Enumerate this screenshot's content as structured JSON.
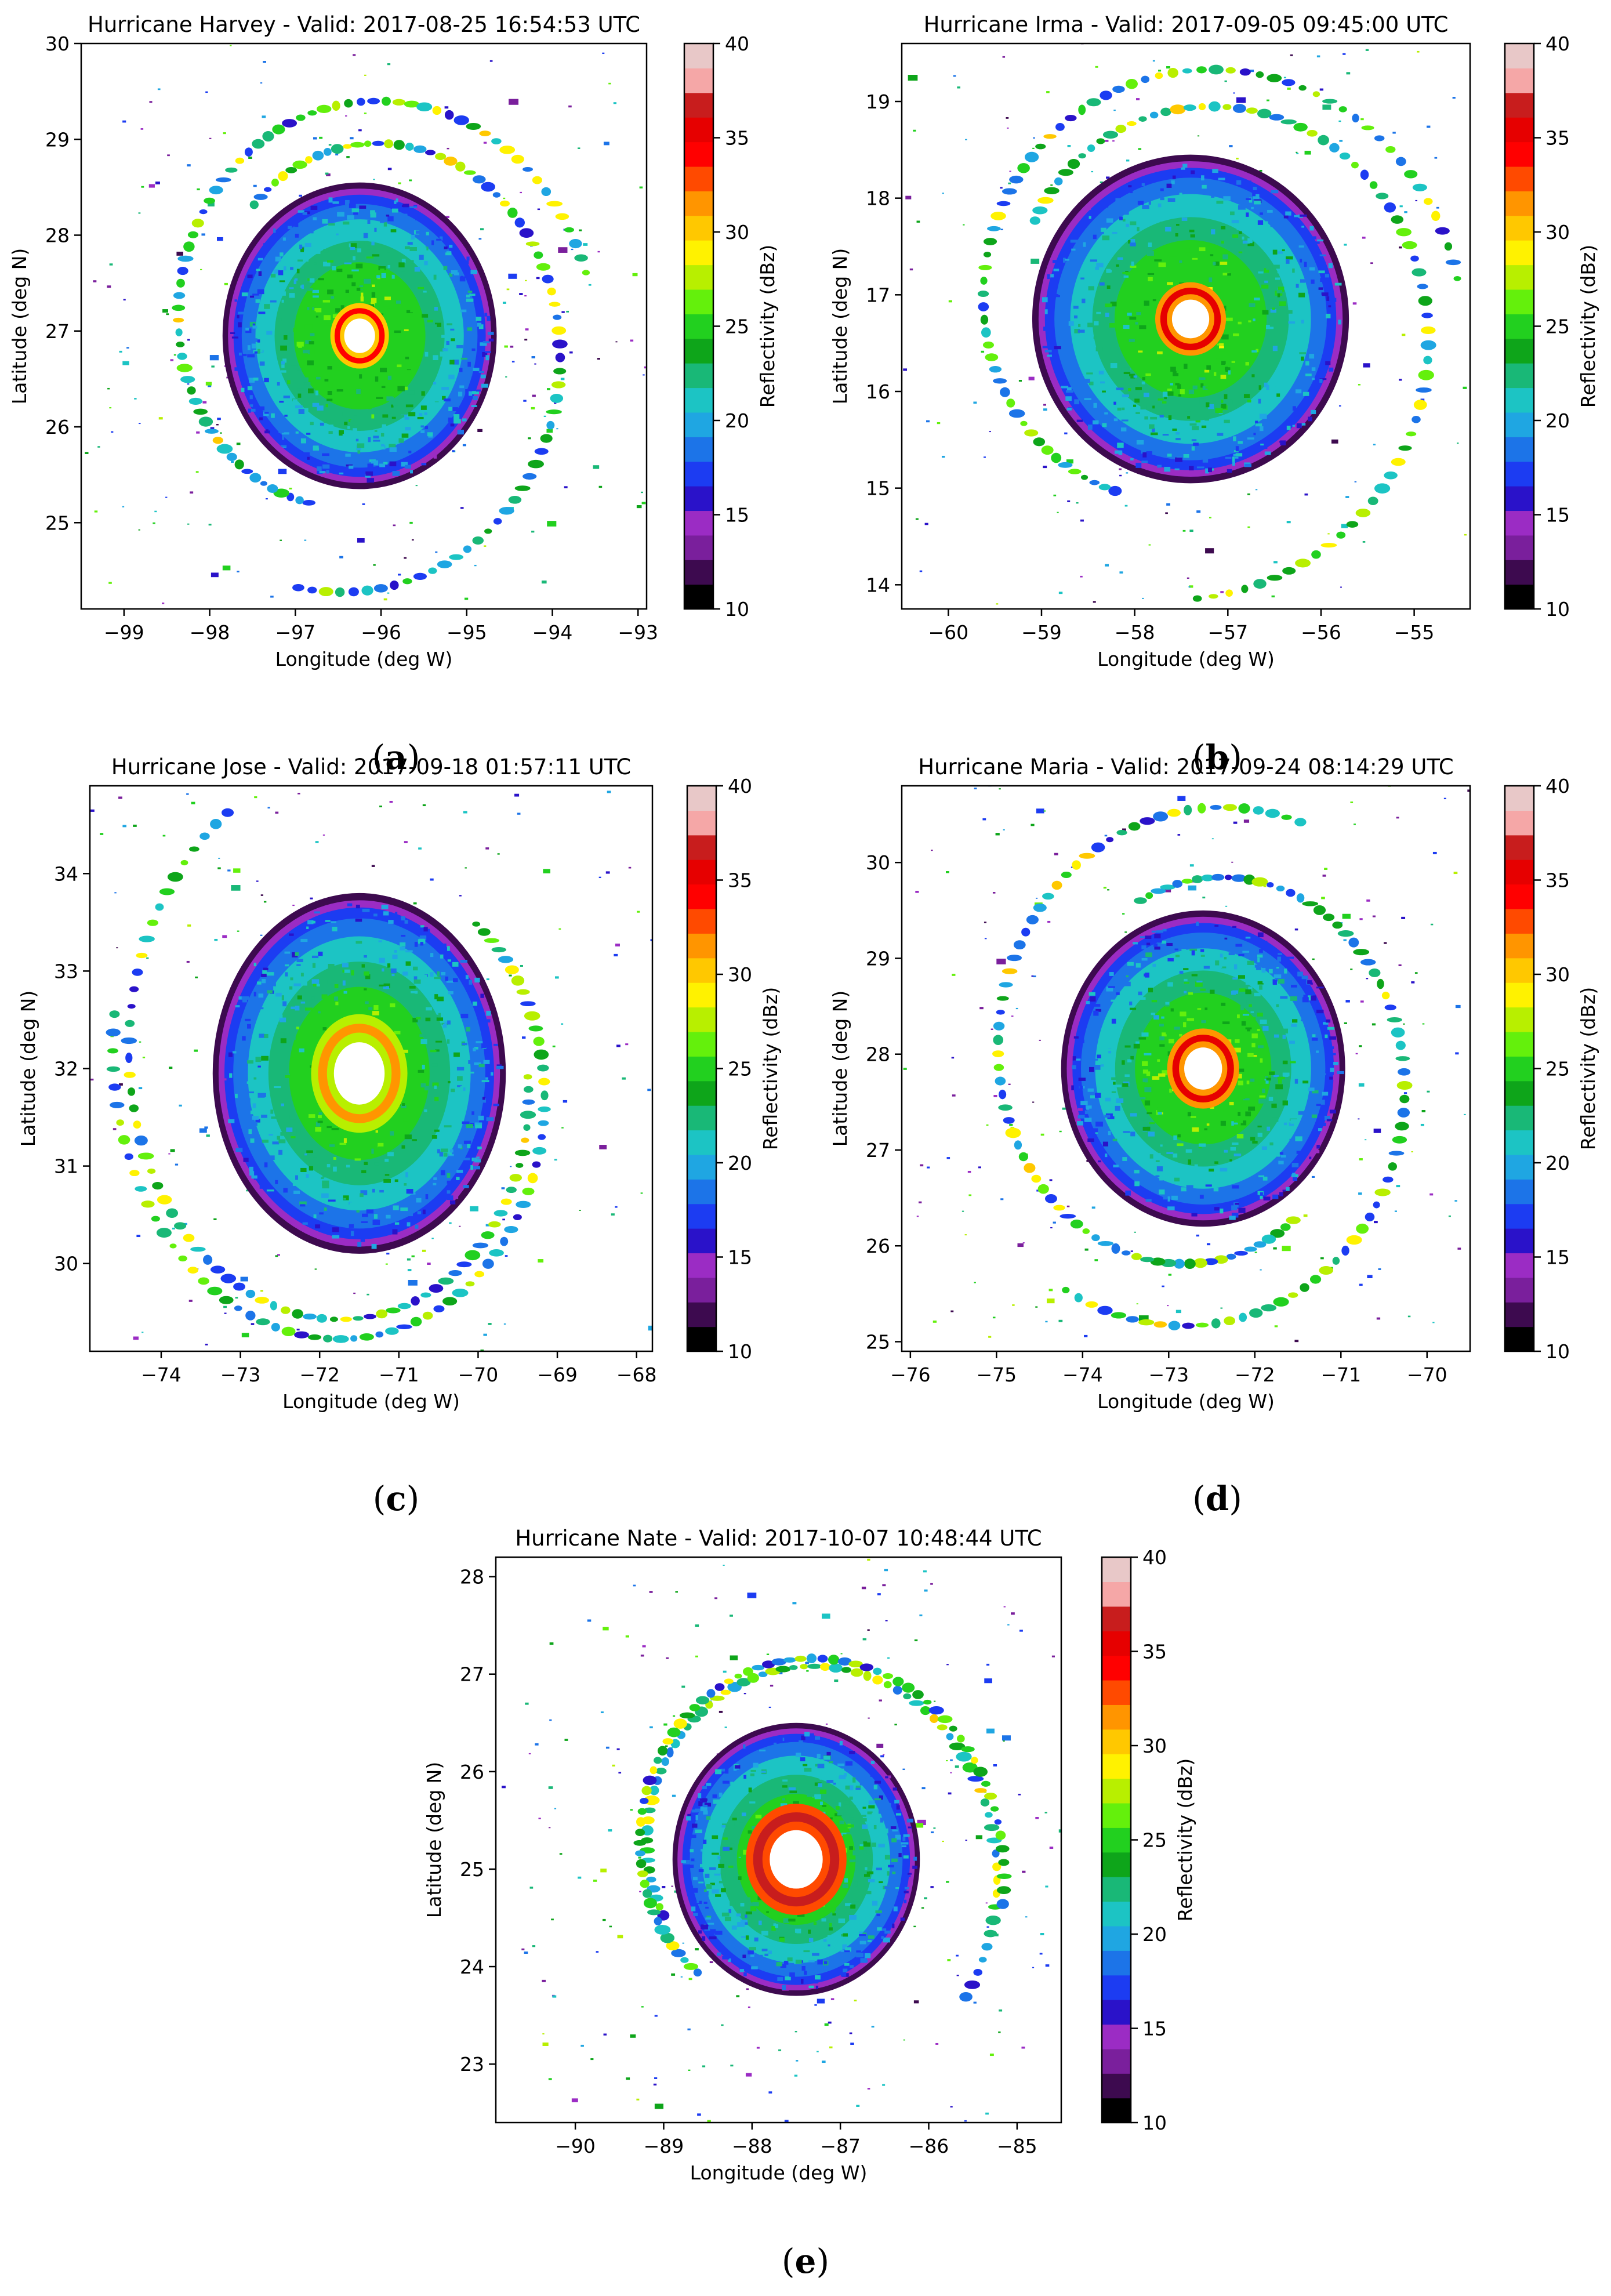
{
  "chart_data": [
    {
      "type": "heatmap",
      "panel_label": "a",
      "title": "Hurricane Harvey - Valid: 2017-08-25 16:54:53 UTC",
      "xlabel": "Longitude (deg W)",
      "ylabel": "Latitude (deg N)",
      "xlim": [
        -99.5,
        -92.9
      ],
      "ylim": [
        24.1,
        30.0
      ],
      "xticks": [
        -99,
        -98,
        -97,
        -96,
        -95,
        -94,
        -93
      ],
      "yticks": [
        25,
        26,
        27,
        28,
        29,
        30
      ],
      "center": [
        -96.25,
        26.95
      ],
      "core_radius": 1.6,
      "eye_radius": 0.18,
      "max_dbz": 34,
      "colorbar": {
        "label": "Reflectivity (dBz)",
        "min": 10,
        "max": 40,
        "ticks": [
          10,
          15,
          20,
          25,
          30,
          35,
          40
        ]
      }
    },
    {
      "type": "heatmap",
      "panel_label": "b",
      "title": "Hurricane Irma - Valid: 2017-09-05 09:45:00 UTC",
      "xlabel": "Longitude (deg W)",
      "ylabel": "Latitude (deg N)",
      "xlim": [
        -60.5,
        -54.4
      ],
      "ylim": [
        13.75,
        19.6
      ],
      "xticks": [
        -60,
        -59,
        -58,
        -57,
        -56,
        -55
      ],
      "yticks": [
        14,
        15,
        16,
        17,
        18,
        19
      ],
      "center": [
        -57.4,
        16.75
      ],
      "core_radius": 1.7,
      "eye_radius": 0.2,
      "max_dbz": 36,
      "colorbar": {
        "label": "Reflectivity (dBz)",
        "min": 10,
        "max": 40,
        "ticks": [
          10,
          15,
          20,
          25,
          30,
          35,
          40
        ]
      }
    },
    {
      "type": "heatmap",
      "panel_label": "c",
      "title": "Hurricane Jose - Valid: 2017-09-18 01:57:11 UTC",
      "xlabel": "Longitude (deg W)",
      "ylabel": "Latitude (deg N)",
      "xlim": [
        -74.9,
        -67.8
      ],
      "ylim": [
        29.1,
        34.9
      ],
      "xticks": [
        -74,
        -73,
        -72,
        -71,
        -70,
        -69,
        -68
      ],
      "yticks": [
        30,
        31,
        32,
        33,
        34
      ],
      "center": [
        -71.5,
        31.95
      ],
      "core_radius": 1.85,
      "eye_radius": 0.32,
      "max_dbz": 32,
      "colorbar": {
        "label": "Reflectivity (dBz)",
        "min": 10,
        "max": 40,
        "ticks": [
          10,
          15,
          20,
          25,
          30,
          35,
          40
        ]
      }
    },
    {
      "type": "heatmap",
      "panel_label": "d",
      "title": "Hurricane Maria - Valid: 2017-09-24 08:14:29 UTC",
      "xlabel": "Longitude (deg W)",
      "ylabel": "Latitude (deg N)",
      "xlim": [
        -76.1,
        -69.5
      ],
      "ylim": [
        24.9,
        30.8
      ],
      "xticks": [
        -76,
        -75,
        -74,
        -73,
        -72,
        -71,
        -70
      ],
      "yticks": [
        25,
        26,
        27,
        28,
        29,
        30
      ],
      "center": [
        -72.6,
        27.85
      ],
      "core_radius": 1.65,
      "eye_radius": 0.22,
      "max_dbz": 35,
      "colorbar": {
        "label": "Reflectivity (dBz)",
        "min": 10,
        "max": 40,
        "ticks": [
          10,
          15,
          20,
          25,
          30,
          35,
          40
        ]
      }
    },
    {
      "type": "heatmap",
      "panel_label": "e",
      "title": "Hurricane Nate - Valid: 2017-10-07 10:48:44 UTC",
      "xlabel": "Longitude (deg W)",
      "ylabel": "Latitude (deg N)",
      "xlim": [
        -90.9,
        -84.5
      ],
      "ylim": [
        22.4,
        28.2
      ],
      "xticks": [
        -90,
        -89,
        -88,
        -87,
        -86,
        -85
      ],
      "yticks": [
        23,
        24,
        25,
        26,
        27,
        28
      ],
      "center": [
        -87.5,
        25.1
      ],
      "core_radius": 1.4,
      "eye_radius": 0.3,
      "max_dbz": 37,
      "colorbar": {
        "label": "Reflectivity (dBz)",
        "min": 10,
        "max": 40,
        "ticks": [
          10,
          15,
          20,
          25,
          30,
          35,
          40
        ]
      }
    }
  ],
  "colors": {
    "scale": [
      "#000000",
      "#3d0a4f",
      "#7a1f9c",
      "#9b2cc4",
      "#2a12c9",
      "#1c3cf2",
      "#1c74e8",
      "#1fa6e2",
      "#1cc4c4",
      "#19b877",
      "#0ea51a",
      "#22d01f",
      "#64f00c",
      "#b8ef00",
      "#fff200",
      "#ffc800",
      "#ff9500",
      "#ff4a00",
      "#ff0000",
      "#e60000",
      "#c81d1d",
      "#f5a7a7",
      "#e8c8c8"
    ]
  }
}
